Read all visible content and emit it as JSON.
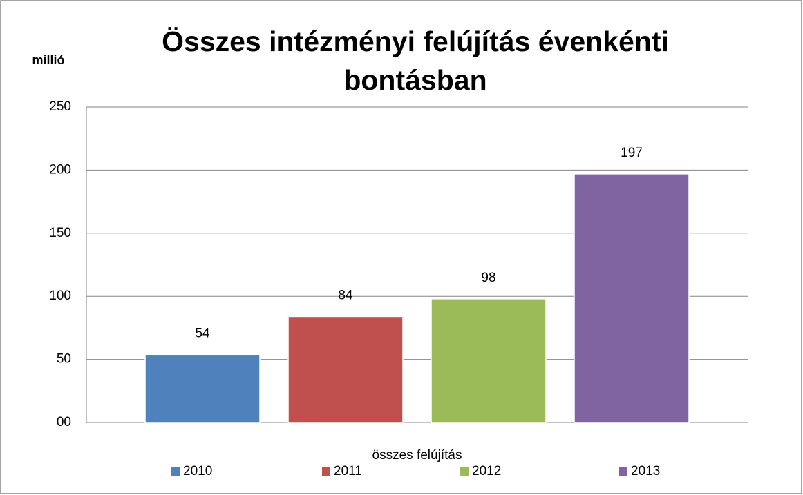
{
  "chart_data": {
    "type": "bar",
    "title": "Összes intézményi felújítás évenkénti bontásban",
    "y_label": "millió",
    "categories": [
      "összes felújítás"
    ],
    "series": [
      {
        "name": "2010",
        "color": "#4f81bd",
        "values": [
          54
        ]
      },
      {
        "name": "2011",
        "color": "#c0504d",
        "values": [
          84
        ]
      },
      {
        "name": "2012",
        "color": "#9bbb59",
        "values": [
          98
        ]
      },
      {
        "name": "2013",
        "color": "#8064a2",
        "values": [
          197
        ]
      }
    ],
    "ylim": [
      0,
      250
    ],
    "yticks": [
      {
        "value": 0,
        "label": "00"
      },
      50,
      100,
      150,
      200,
      250
    ],
    "grid": true,
    "legend": "bottom"
  }
}
